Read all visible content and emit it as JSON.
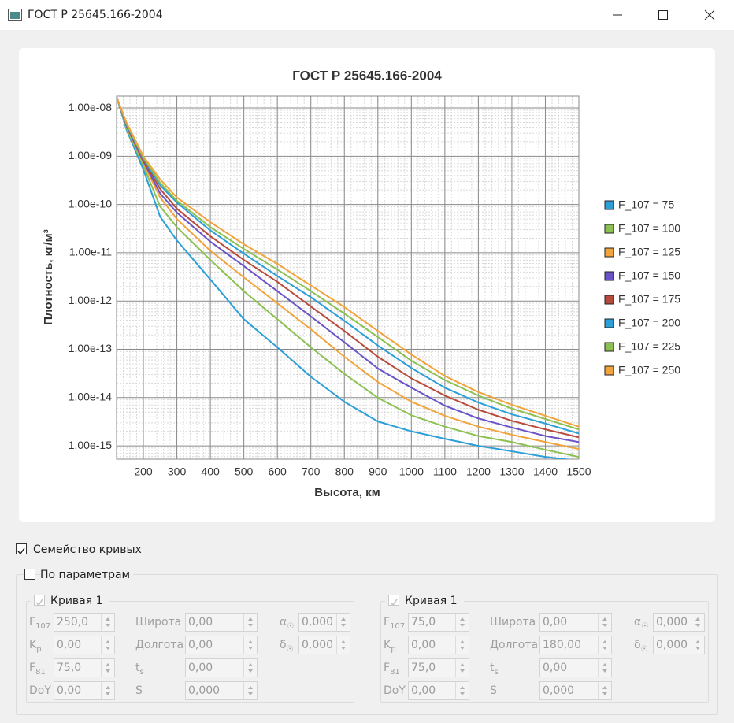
{
  "window": {
    "title": "ГОСТ Р 25645.166-2004"
  },
  "chart_data": {
    "type": "line",
    "title": "ГОСТ Р 25645.166-2004",
    "x_label": "Высота, км",
    "y_label": "Плотность, кг/м³",
    "x": [
      120,
      150,
      200,
      250,
      300,
      400,
      500,
      600,
      700,
      800,
      900,
      1000,
      1100,
      1200,
      1300,
      1400,
      1500
    ],
    "series": [
      {
        "name": "F_107 = 75",
        "color": "#2b9fd8",
        "values": [
          1.7e-08,
          3.5e-09,
          5.3e-10,
          5.6e-11,
          1.8e-11,
          2.8e-12,
          4.2e-13,
          1.1e-13,
          2.7e-14,
          8.2e-15,
          3.2e-15,
          2e-15,
          1.4e-15,
          1e-15,
          7.7e-16,
          5.9e-16,
          4.9e-16
        ]
      },
      {
        "name": "F_107 = 100",
        "color": "#8cc152",
        "values": [
          1.7e-08,
          3.8e-09,
          6.4e-10,
          9.1e-11,
          3.4e-11,
          7.1e-12,
          1.6e-12,
          4.2e-13,
          1.1e-13,
          3.1e-14,
          9.9e-15,
          4.3e-15,
          2.5e-15,
          1.6e-15,
          1.2e-15,
          8.3e-16,
          5.9e-16
        ]
      },
      {
        "name": "F_107 = 125",
        "color": "#f2a33a",
        "values": [
          1.7e-08,
          4.1e-09,
          7.2e-10,
          1.4e-10,
          5e-11,
          1.1e-11,
          3.1e-12,
          9e-13,
          2.6e-13,
          7e-14,
          2.1e-14,
          8.2e-15,
          4.2e-15,
          2.5e-15,
          1.7e-15,
          1.2e-15,
          8.6e-16
        ]
      },
      {
        "name": "F_107 = 150",
        "color": "#6a52c9",
        "values": [
          1.7e-08,
          4.2e-09,
          7.8e-10,
          1.7e-10,
          6.8e-11,
          1.7e-11,
          5.3e-12,
          1.6e-12,
          4.8e-13,
          1.4e-13,
          4e-14,
          1.6e-14,
          6.8e-15,
          3.7e-15,
          2.4e-15,
          1.6e-15,
          1.2e-15
        ]
      },
      {
        "name": "F_107 = 175",
        "color": "#b84a3c",
        "values": [
          1.7e-08,
          4.4e-09,
          8.4e-10,
          2.1e-10,
          8.2e-11,
          2.2e-11,
          7.1e-12,
          2.5e-12,
          7.7e-13,
          2.4e-13,
          7e-14,
          2.5e-14,
          1.1e-14,
          5.6e-15,
          3.3e-15,
          2.2e-15,
          1.5e-15
        ]
      },
      {
        "name": "F_107 = 200",
        "color": "#2b9fd8",
        "values": [
          1.7e-08,
          4.5e-09,
          9e-10,
          2.5e-10,
          1.1e-10,
          2.9e-11,
          9.6e-12,
          3.3e-12,
          1.2e-12,
          3.9e-13,
          1.2e-13,
          4.1e-14,
          1.6e-14,
          7.9e-15,
          4.5e-15,
          2.9e-15,
          1.8e-15
        ]
      },
      {
        "name": "F_107 = 225",
        "color": "#8cc152",
        "values": [
          1.7e-08,
          4.7e-09,
          9.4e-10,
          2.8e-10,
          1.2e-10,
          3.4e-11,
          1.2e-11,
          4.5e-12,
          1.6e-12,
          5.5e-13,
          1.8e-13,
          5.8e-14,
          2.3e-14,
          1.1e-14,
          5.9e-15,
          3.6e-15,
          2.2e-15
        ]
      },
      {
        "name": "F_107 = 250",
        "color": "#f2a33a",
        "values": [
          1.7e-08,
          4.9e-09,
          1e-09,
          3.3e-10,
          1.4e-10,
          4.3e-11,
          1.5e-11,
          5.9e-12,
          2.1e-12,
          7.5e-13,
          2.4e-13,
          7.8e-14,
          2.8e-14,
          1.3e-14,
          7.1e-15,
          4.2e-15,
          2.5e-15
        ]
      }
    ],
    "xlim": [
      120,
      1500
    ],
    "xticks": [
      200,
      300,
      400,
      500,
      600,
      700,
      800,
      900,
      1000,
      1100,
      1200,
      1300,
      1400,
      1500
    ],
    "ylim": [
      5.3e-16,
      1.76e-08
    ],
    "log_y": true,
    "yticks": [
      {
        "value": 1e-08,
        "label": "1.00e-08"
      },
      {
        "value": 1e-09,
        "label": "1.00e-09"
      },
      {
        "value": 1e-10,
        "label": "1.00e-10"
      },
      {
        "value": 1e-11,
        "label": "1.00e-11"
      },
      {
        "value": 1e-12,
        "label": "1.00e-12"
      },
      {
        "value": 1e-13,
        "label": "1.00e-13"
      },
      {
        "value": 1e-14,
        "label": "1.00e-14"
      },
      {
        "value": 1e-15,
        "label": "1.00e-15"
      }
    ],
    "grid": true,
    "minor_grid": true,
    "legend": "right"
  },
  "controls": {
    "family": {
      "label": "Семейство кривых",
      "checked": true
    },
    "by_params": {
      "label": "По параметрам",
      "checked": false
    },
    "groups": [
      {
        "title": "Кривая 1",
        "checked": true,
        "columns": [
          [
            {
              "label": "F",
              "sub": "107",
              "value": "250,0"
            },
            {
              "label": "K",
              "sub": "p",
              "value": "0,00"
            },
            {
              "label": "F",
              "sub": "81",
              "value": "75,0"
            },
            {
              "label": "DoY",
              "value": "0,00"
            }
          ],
          [
            {
              "label": "Широта",
              "value": "0,00"
            },
            {
              "label": "Долгота",
              "value": "0,00"
            },
            {
              "label": "t",
              "sub": "s",
              "value": "0,00"
            },
            {
              "label": "S",
              "value": "0,000"
            }
          ],
          [
            {
              "label": "α",
              "sub": "☉",
              "value": "0,000"
            },
            {
              "label": "δ",
              "sub": "☉",
              "value": "0,000"
            }
          ]
        ]
      },
      {
        "title": "Кривая 1",
        "checked": true,
        "columns": [
          [
            {
              "label": "F",
              "sub": "107",
              "value": "75,0"
            },
            {
              "label": "K",
              "sub": "p",
              "value": "0,00"
            },
            {
              "label": "F",
              "sub": "81",
              "value": "75,0"
            },
            {
              "label": "DoY",
              "value": "0,00"
            }
          ],
          [
            {
              "label": "Широта",
              "value": "0,00"
            },
            {
              "label": "Долгота",
              "value": "180,00"
            },
            {
              "label": "t",
              "sub": "s",
              "value": "0,00"
            },
            {
              "label": "S",
              "value": "0,000"
            }
          ],
          [
            {
              "label": "α",
              "sub": "☉",
              "value": "0,000"
            },
            {
              "label": "δ",
              "sub": "☉",
              "value": "0,000"
            }
          ]
        ]
      }
    ]
  }
}
